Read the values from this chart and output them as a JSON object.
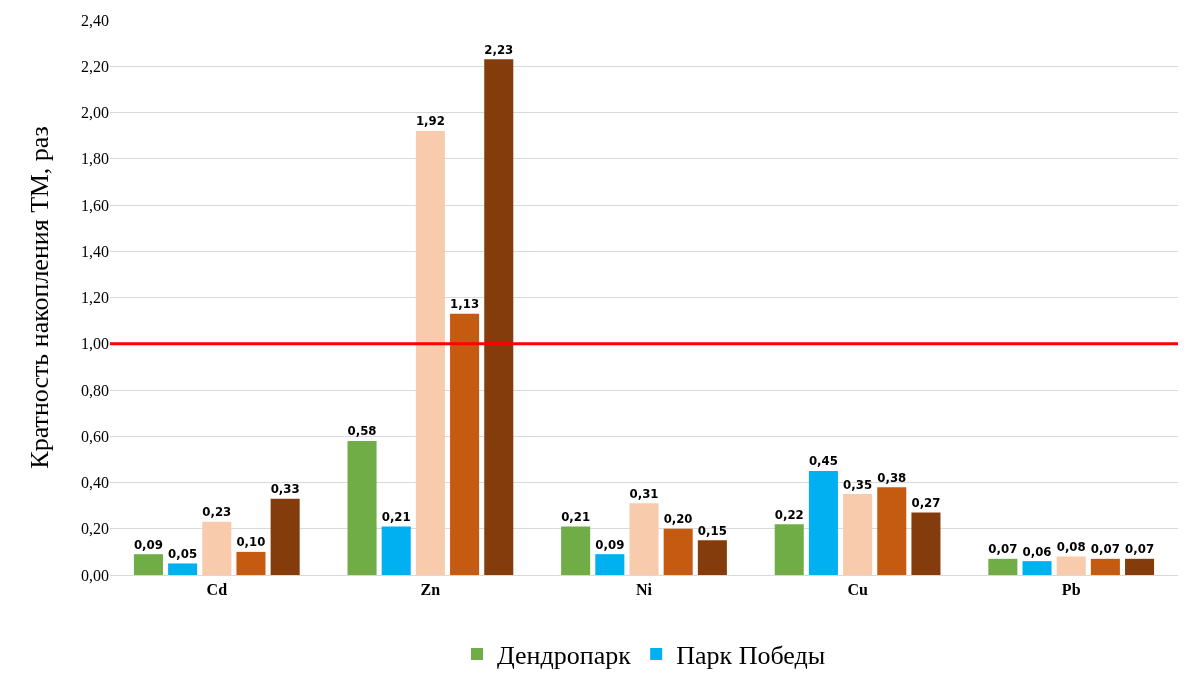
{
  "chart_data": {
    "type": "bar",
    "ylabel": "Кратность накопления ТМ, раз",
    "categories": [
      "Cd",
      "Zn",
      "Ni",
      "Cu",
      "Pb"
    ],
    "series": [
      {
        "name": "Дендропарк",
        "color": "#70ad47",
        "values": [
          0.09,
          0.58,
          0.21,
          0.22,
          0.07
        ],
        "value_labels": [
          "0,09",
          "0,58",
          "0,21",
          "0,22",
          "0,07"
        ]
      },
      {
        "name": "Парк Победы",
        "color": "#00b0f0",
        "values": [
          0.05,
          0.21,
          0.09,
          0.45,
          0.06
        ],
        "value_labels": [
          "0,05",
          "0,21",
          "0,09",
          "0,45",
          "0,06"
        ]
      },
      {
        "color": "#f8cbad",
        "values": [
          0.23,
          1.92,
          0.31,
          0.35,
          0.08
        ],
        "value_labels": [
          "0,23",
          "1,92",
          "0,31",
          "0,35",
          "0,08"
        ]
      },
      {
        "color": "#c55a11",
        "values": [
          0.1,
          1.13,
          0.2,
          0.38,
          0.07
        ],
        "value_labels": [
          "0,10",
          "1,13",
          "0,20",
          "0,38",
          "0,07"
        ]
      },
      {
        "color": "#843c0c",
        "values": [
          0.33,
          2.23,
          0.15,
          0.27,
          0.07
        ],
        "value_labels": [
          "0,33",
          "2,23",
          "0,15",
          "0,27",
          "0,07"
        ]
      }
    ],
    "ylim": [
      0,
      2.4
    ],
    "yticks": [
      {
        "value": 0,
        "label": "0,00"
      },
      {
        "value": 0.2,
        "label": "0,20"
      },
      {
        "value": 0.4,
        "label": "0,40"
      },
      {
        "value": 0.6,
        "label": "0,60"
      },
      {
        "value": 0.8,
        "label": "0,80"
      },
      {
        "value": 1,
        "label": "1,00"
      },
      {
        "value": 1.2,
        "label": "1,20"
      },
      {
        "value": 1.4,
        "label": "1,40"
      },
      {
        "value": 1.6,
        "label": "1,60"
      },
      {
        "value": 1.8,
        "label": "1,80"
      },
      {
        "value": 2,
        "label": "2,00"
      },
      {
        "value": 2.2,
        "label": "2,20"
      },
      {
        "value": 2.4,
        "label": "2,40"
      }
    ],
    "ref_lines": [
      {
        "axis": "y",
        "value": 1,
        "color": "#ff0000"
      }
    ],
    "grid": "y",
    "legend": "bottom"
  }
}
